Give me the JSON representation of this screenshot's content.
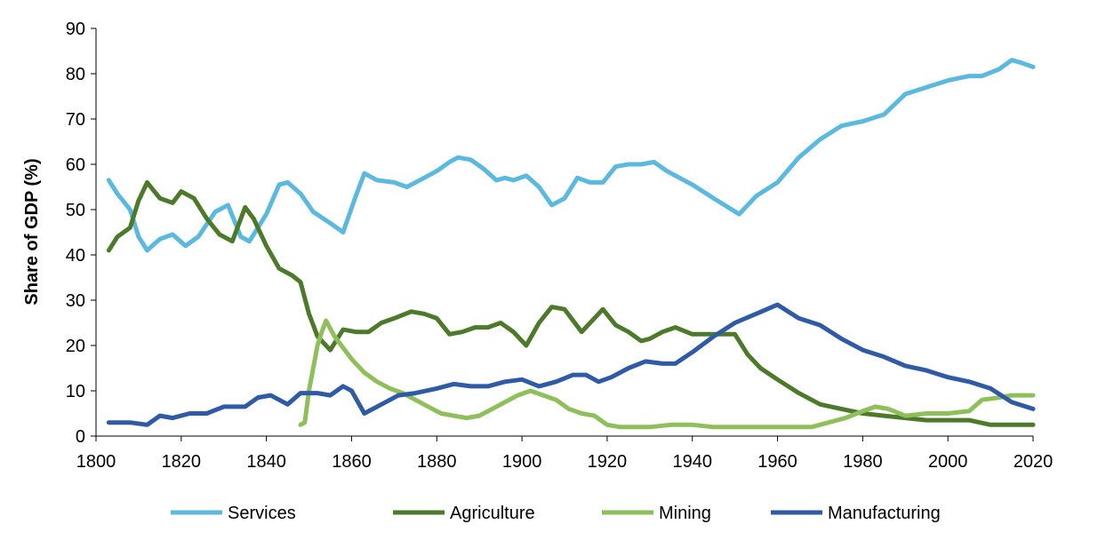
{
  "chart_data": {
    "type": "line",
    "title": "",
    "xlabel": "",
    "ylabel": "Share of GDP (%)",
    "xlim": [
      1800,
      2020
    ],
    "ylim": [
      0,
      90
    ],
    "x_ticks": [
      1800,
      1820,
      1840,
      1860,
      1880,
      1900,
      1920,
      1940,
      1960,
      1980,
      2000,
      2020
    ],
    "y_ticks": [
      0,
      10,
      20,
      30,
      40,
      50,
      60,
      70,
      80,
      90
    ],
    "grid": false,
    "legend_position": "bottom",
    "series": [
      {
        "name": "Services",
        "color": "#5bb8de",
        "x": [
          1803,
          1805,
          1808,
          1810,
          1812,
          1815,
          1818,
          1821,
          1824,
          1828,
          1831,
          1834,
          1836,
          1840,
          1843,
          1845,
          1848,
          1851,
          1855,
          1858,
          1861,
          1863,
          1866,
          1870,
          1873,
          1876,
          1880,
          1883,
          1885,
          1888,
          1891,
          1894,
          1896,
          1898,
          1901,
          1904,
          1907,
          1910,
          1913,
          1916,
          1919,
          1922,
          1925,
          1928,
          1931,
          1934,
          1937,
          1940,
          1945,
          1951,
          1955,
          1960,
          1965,
          1970,
          1975,
          1980,
          1985,
          1990,
          1995,
          2000,
          2005,
          2008,
          2012,
          2015,
          2017,
          2020
        ],
        "y": [
          56.5,
          53.5,
          50,
          44,
          41,
          43.5,
          44.5,
          42,
          44,
          49.5,
          51,
          44,
          43,
          49,
          55.5,
          56,
          53.5,
          49.5,
          47,
          45,
          53,
          58,
          56.5,
          56,
          55,
          56.5,
          58.5,
          60.5,
          61.5,
          61,
          59,
          56.5,
          57,
          56.5,
          57.5,
          55,
          51,
          52.5,
          57,
          56,
          56,
          59.5,
          60,
          60,
          60.5,
          58.5,
          57,
          55.5,
          52.5,
          49,
          53,
          56,
          61.5,
          65.5,
          68.5,
          69.5,
          71,
          75.5,
          77,
          78.5,
          79.5,
          79.5,
          81,
          83,
          82.5,
          81.5
        ]
      },
      {
        "name": "Agriculture",
        "color": "#4d7a2a",
        "x": [
          1803,
          1805,
          1808,
          1810,
          1812,
          1815,
          1818,
          1820,
          1823,
          1826,
          1829,
          1832,
          1835,
          1837,
          1840,
          1843,
          1846,
          1848,
          1850,
          1852,
          1855,
          1858,
          1861,
          1864,
          1867,
          1870,
          1874,
          1877,
          1880,
          1883,
          1886,
          1889,
          1892,
          1895,
          1898,
          1901,
          1904,
          1907,
          1910,
          1914,
          1917,
          1919,
          1922,
          1925,
          1928,
          1930,
          1933,
          1936,
          1940,
          1945,
          1950,
          1953,
          1956,
          1960,
          1965,
          1970,
          1975,
          1980,
          1985,
          1990,
          1995,
          2000,
          2005,
          2010,
          2015,
          2020
        ],
        "y": [
          41,
          44,
          46,
          52,
          56,
          52.5,
          51.5,
          54,
          52.5,
          48,
          44.5,
          43,
          50.5,
          48,
          42,
          37,
          35.5,
          34,
          27,
          22,
          19,
          23.5,
          23,
          23,
          25,
          26,
          27.5,
          27,
          26,
          22.5,
          23,
          24,
          24,
          25,
          23,
          20,
          25,
          28.5,
          28,
          23,
          26,
          28,
          24.5,
          23,
          21,
          21.5,
          23,
          24,
          22.5,
          22.5,
          22.5,
          18,
          15,
          12.5,
          9.5,
          7,
          6,
          5,
          4.5,
          4,
          3.5,
          3.5,
          3.5,
          2.5,
          2.5,
          2.5
        ]
      },
      {
        "name": "Mining",
        "color": "#8fbf5a",
        "x": [
          1848,
          1849,
          1850,
          1851,
          1852,
          1853,
          1854,
          1856,
          1858,
          1860,
          1863,
          1866,
          1869,
          1872,
          1875,
          1878,
          1881,
          1884,
          1887,
          1890,
          1893,
          1896,
          1899,
          1902,
          1905,
          1908,
          1911,
          1914,
          1917,
          1920,
          1923,
          1926,
          1930,
          1935,
          1940,
          1945,
          1950,
          1955,
          1960,
          1965,
          1968,
          1972,
          1976,
          1980,
          1983,
          1986,
          1990,
          1995,
          2000,
          2005,
          2008,
          2012,
          2015,
          2020
        ],
        "y": [
          2.5,
          3,
          10,
          15,
          20,
          23,
          25.5,
          22,
          19.5,
          17,
          14,
          12,
          10.5,
          9.5,
          8,
          6.5,
          5,
          4.5,
          4,
          4.5,
          6,
          7.5,
          9,
          10,
          9,
          8,
          6,
          5,
          4.5,
          2.5,
          2,
          2,
          2,
          2.5,
          2.5,
          2,
          2,
          2,
          2,
          2,
          2,
          3,
          4,
          5.5,
          6.5,
          6,
          4.5,
          5,
          5,
          5.5,
          8,
          8.5,
          9,
          9
        ]
      },
      {
        "name": "Manufacturing",
        "color": "#2f5aa5",
        "x": [
          1803,
          1808,
          1812,
          1815,
          1818,
          1822,
          1826,
          1830,
          1835,
          1838,
          1841,
          1845,
          1848,
          1852,
          1855,
          1858,
          1860,
          1863,
          1867,
          1871,
          1875,
          1880,
          1884,
          1888,
          1892,
          1896,
          1900,
          1904,
          1908,
          1912,
          1915,
          1918,
          1921,
          1925,
          1929,
          1933,
          1936,
          1940,
          1945,
          1950,
          1955,
          1960,
          1965,
          1970,
          1975,
          1980,
          1985,
          1990,
          1995,
          2000,
          2005,
          2010,
          2015,
          2020
        ],
        "y": [
          3,
          3,
          2.5,
          4.5,
          4,
          5,
          5,
          6.5,
          6.5,
          8.5,
          9,
          7,
          9.5,
          9.5,
          9,
          11,
          10,
          5,
          7,
          9,
          9.5,
          10.5,
          11.5,
          11,
          11,
          12,
          12.5,
          11,
          12,
          13.5,
          13.5,
          12,
          13,
          15,
          16.5,
          16,
          16,
          18.5,
          22,
          25,
          27,
          29,
          26,
          24.5,
          21.5,
          19,
          17.5,
          15.5,
          14.5,
          13,
          12,
          10.5,
          7.5,
          6
        ]
      }
    ]
  }
}
